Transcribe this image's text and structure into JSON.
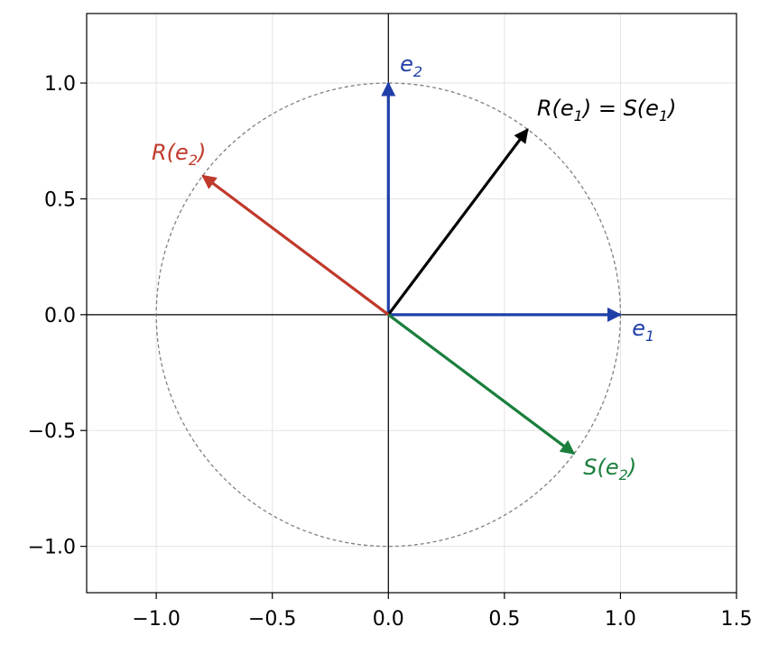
{
  "chart_data": {
    "type": "vector_plot",
    "xlim": [
      -1.3,
      1.5
    ],
    "ylim": [
      -1.2,
      1.3
    ],
    "grid": true,
    "x_ticks": [
      -1.0,
      -0.5,
      0.0,
      0.5,
      1.0,
      1.5
    ],
    "y_ticks": [
      -1.0,
      -0.5,
      0.0,
      0.5,
      1.0
    ],
    "x_tick_labels": [
      "−1.0",
      "−0.5",
      "0.0",
      "0.5",
      "1.0",
      "1.5"
    ],
    "y_tick_labels": [
      "−1.0",
      "−0.5",
      "0.0",
      "0.5",
      "1.0"
    ],
    "unit_circle": {
      "radius": 1.0,
      "style": "dashed",
      "color": "#808080"
    },
    "vectors": [
      {
        "id": "e1",
        "label_base": "e",
        "label_sub": "1",
        "from": [
          0,
          0
        ],
        "to": [
          1.0,
          0.0
        ],
        "color": "#1f3fa8",
        "label_pos": [
          1.05,
          -0.09
        ]
      },
      {
        "id": "e2",
        "label_base": "e",
        "label_sub": "2",
        "from": [
          0,
          0
        ],
        "to": [
          0.0,
          1.0
        ],
        "color": "#1f3fa8",
        "label_pos": [
          0.05,
          1.05
        ]
      },
      {
        "id": "Re1",
        "label_rich": [
          "R(",
          "e",
          "1",
          ") = S(",
          "e",
          "1",
          ")"
        ],
        "from": [
          0,
          0
        ],
        "to": [
          0.6,
          0.8
        ],
        "color": "#000000",
        "label_pos": [
          0.64,
          0.86
        ]
      },
      {
        "id": "Re2",
        "label_rich": [
          "R(",
          "e",
          "2",
          ")"
        ],
        "from": [
          0,
          0
        ],
        "to": [
          -0.8,
          0.6
        ],
        "color": "#c0392b",
        "label_pos": [
          -1.02,
          0.67
        ]
      },
      {
        "id": "Se2",
        "label_rich": [
          "S(",
          "e",
          "2",
          ")"
        ],
        "from": [
          0,
          0
        ],
        "to": [
          0.8,
          -0.6
        ],
        "color": "#1a7f3c",
        "label_pos": [
          0.84,
          -0.69
        ]
      }
    ]
  }
}
